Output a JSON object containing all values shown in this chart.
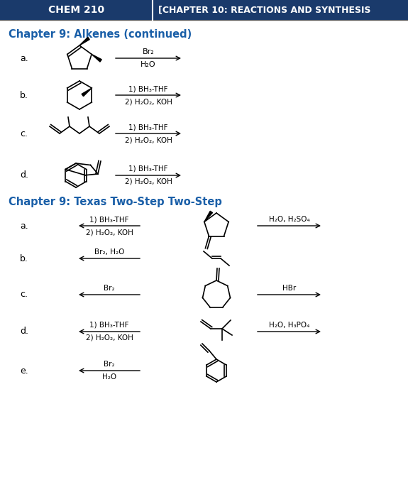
{
  "header_bg": "#1a3a6b",
  "header_text_left": "CHEM 210",
  "header_text_right": "[CHAPTER 10: REACTIONS AND SYNTHESIS",
  "section1_title": "Chapter 9: Alkenes (continued)",
  "section2_title": "Chapter 9: Texas Two-Step Two-Step",
  "section_title_color": "#1a5fa8",
  "bg_color": "#ffffff",
  "text_color": "#000000",
  "fig_width": 5.75,
  "fig_height": 7.0,
  "dpi": 100
}
